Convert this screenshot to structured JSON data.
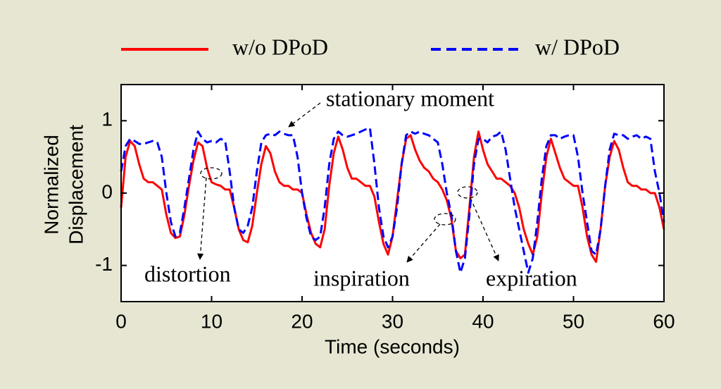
{
  "chart_data": {
    "type": "line",
    "xlabel": "Time (seconds)",
    "ylabel": [
      "Normalized",
      "Displacement"
    ],
    "xlim": [
      0,
      60
    ],
    "ylim": [
      -1.5,
      1.5
    ],
    "xticks": [
      0,
      10,
      20,
      30,
      40,
      50,
      60
    ],
    "yticks": [
      -1,
      0,
      1
    ],
    "annotations": [
      "stationary moment",
      "distortion",
      "inspiration",
      "expiration"
    ],
    "x": [
      0,
      0.5,
      1,
      1.5,
      2,
      2.5,
      3,
      3.5,
      4,
      4.5,
      5,
      5.5,
      6,
      6.5,
      7,
      7.5,
      8,
      8.5,
      9,
      9.5,
      10,
      10.5,
      11,
      11.5,
      12,
      12.5,
      13,
      13.5,
      14,
      14.5,
      15,
      15.5,
      16,
      16.5,
      17,
      17.5,
      18,
      18.5,
      19,
      19.5,
      20,
      20.5,
      21,
      21.5,
      22,
      22.5,
      23,
      23.5,
      24,
      24.5,
      25,
      25.5,
      26,
      26.5,
      27,
      27.5,
      28,
      28.5,
      29,
      29.5,
      30,
      30.5,
      31,
      31.5,
      32,
      32.5,
      33,
      33.5,
      34,
      34.5,
      35,
      35.5,
      36,
      36.5,
      37,
      37.5,
      38,
      38.5,
      39,
      39.5,
      40,
      40.5,
      41,
      41.5,
      42,
      42.5,
      43,
      43.5,
      44,
      44.5,
      45,
      45.5,
      46,
      46.5,
      47,
      47.5,
      48,
      48.5,
      49,
      49.5,
      50,
      50.5,
      51,
      51.5,
      52,
      52.5,
      53,
      53.5,
      54,
      54.5,
      55,
      55.5,
      56,
      56.5,
      57,
      57.5,
      58,
      58.5,
      59,
      59.5,
      60
    ],
    "series": [
      {
        "name": "w/o DPoD",
        "color": "#ff0000",
        "dashed": false,
        "values": [
          -0.2,
          0.5,
          0.72,
          0.65,
          0.4,
          0.2,
          0.15,
          0.15,
          0.1,
          0.05,
          -0.3,
          -0.55,
          -0.62,
          -0.6,
          -0.3,
          0.1,
          0.45,
          0.7,
          0.65,
          0.35,
          0.15,
          0.12,
          0.1,
          0.05,
          0.05,
          -0.2,
          -0.5,
          -0.65,
          -0.68,
          -0.45,
          0.0,
          0.4,
          0.65,
          0.55,
          0.3,
          0.15,
          0.1,
          0.1,
          0.05,
          0.05,
          0.0,
          -0.3,
          -0.55,
          -0.7,
          -0.75,
          -0.5,
          0.1,
          0.55,
          0.78,
          0.6,
          0.35,
          0.2,
          0.2,
          0.15,
          0.1,
          0.1,
          -0.05,
          -0.4,
          -0.7,
          -0.85,
          -0.6,
          -0.1,
          0.4,
          0.75,
          0.8,
          0.6,
          0.45,
          0.35,
          0.3,
          0.2,
          0.15,
          0.05,
          -0.1,
          -0.35,
          -0.8,
          -0.9,
          -0.85,
          -0.2,
          0.5,
          0.85,
          0.6,
          0.4,
          0.3,
          0.2,
          0.2,
          0.15,
          0.1,
          0.0,
          -0.2,
          -0.5,
          -0.7,
          -0.85,
          -0.6,
          0.0,
          0.5,
          0.75,
          0.55,
          0.35,
          0.2,
          0.15,
          0.1,
          0.1,
          -0.2,
          -0.6,
          -0.85,
          -0.95,
          -0.5,
          0.1,
          0.5,
          0.72,
          0.6,
          0.35,
          0.15,
          0.1,
          0.1,
          0.05,
          0.05,
          0.0,
          0.0,
          -0.2,
          -0.5
        ]
      },
      {
        "name": "w/ DPoD",
        "color": "#0000ff",
        "dashed": true,
        "values": [
          0.3,
          0.65,
          0.75,
          0.72,
          0.68,
          0.68,
          0.7,
          0.72,
          0.7,
          0.5,
          0.0,
          -0.4,
          -0.6,
          -0.55,
          -0.2,
          0.2,
          0.6,
          0.85,
          0.75,
          0.7,
          0.72,
          0.7,
          0.75,
          0.72,
          0.3,
          -0.2,
          -0.5,
          -0.55,
          -0.45,
          -0.2,
          0.3,
          0.7,
          0.8,
          0.82,
          0.8,
          0.85,
          0.82,
          0.8,
          0.8,
          0.5,
          0.0,
          -0.35,
          -0.6,
          -0.65,
          -0.6,
          -0.2,
          0.4,
          0.75,
          0.85,
          0.8,
          0.78,
          0.8,
          0.82,
          0.85,
          0.88,
          0.9,
          0.4,
          -0.2,
          -0.6,
          -0.75,
          -0.6,
          -0.2,
          0.4,
          0.8,
          0.85,
          0.82,
          0.85,
          0.82,
          0.8,
          0.75,
          0.7,
          0.4,
          0.0,
          -0.3,
          -0.8,
          -1.1,
          -0.9,
          -0.3,
          0.4,
          0.75,
          0.75,
          0.7,
          0.78,
          0.8,
          0.85,
          0.6,
          0.2,
          -0.2,
          -0.5,
          -0.8,
          -1.1,
          -0.9,
          -0.4,
          0.2,
          0.65,
          0.8,
          0.8,
          0.75,
          0.78,
          0.8,
          0.8,
          0.5,
          0.0,
          -0.4,
          -0.8,
          -0.85,
          -0.5,
          0.1,
          0.6,
          0.82,
          0.8,
          0.8,
          0.75,
          0.78,
          0.8,
          0.75,
          0.78,
          0.75,
          0.3,
          0.0,
          -0.4
        ]
      }
    ]
  }
}
